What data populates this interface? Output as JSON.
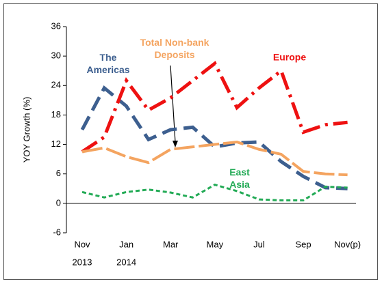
{
  "chart_data": {
    "type": "line",
    "ylabel": "YOY Growth (%)",
    "categories": [
      "Nov",
      null,
      "Jan",
      null,
      "Mar",
      null,
      "May",
      null,
      "Jul",
      null,
      "Sep",
      null,
      "Nov(p)"
    ],
    "category_years": [
      "2013",
      null,
      "2014",
      null,
      null,
      null,
      null,
      null,
      null,
      null,
      null,
      null,
      null
    ],
    "ylim": [
      -6,
      36
    ],
    "yticks": [
      -6,
      0,
      6,
      12,
      18,
      24,
      30,
      36
    ],
    "series": [
      {
        "name": "The Americas",
        "color": "#3d5f8f",
        "dash": "22 10",
        "width": 5,
        "values": [
          15,
          23.5,
          19.8,
          13,
          15,
          15.5,
          11.5,
          12.3,
          12.5,
          8.5,
          5.5,
          3.2,
          3
        ]
      },
      {
        "name": "Europe",
        "color": "#ee1111",
        "dash": "26 8 4 8",
        "width": 5,
        "values": [
          10.5,
          13.5,
          25,
          19,
          21.5,
          25,
          28.5,
          19.5,
          23.5,
          27,
          14.5,
          16,
          16.5
        ]
      },
      {
        "name": "Total Non-bank Deposits",
        "color": "#f4a460",
        "dash": "30 6",
        "width": 4,
        "values": [
          10.5,
          11.3,
          9.5,
          8.3,
          11,
          11.5,
          12,
          12.5,
          11,
          10,
          6.5,
          6,
          5.8
        ]
      },
      {
        "name": "East Asia",
        "color": "#22aa55",
        "dash": "6 4",
        "width": 3,
        "values": [
          2.3,
          1.2,
          2.3,
          2.8,
          2.2,
          1.2,
          3.8,
          2.5,
          0.8,
          0.6,
          0.6,
          3.4,
          3.2
        ]
      }
    ]
  }
}
